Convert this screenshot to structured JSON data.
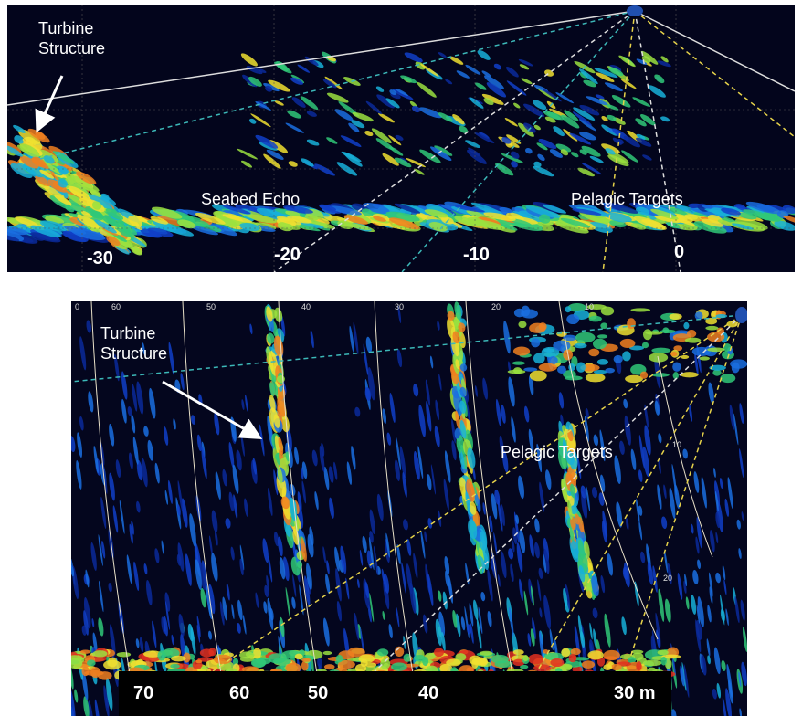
{
  "top_panel": {
    "annotations": [
      "Turbine Structure",
      "Seabed Echo",
      "Pelagic Targets"
    ],
    "axis_labels": [
      "-30",
      "-20",
      "-10",
      "0"
    ]
  },
  "bottom_panel": {
    "annotations": [
      "Turbine Structure",
      "Pelagic Targets"
    ],
    "top_range_labels": [
      "0",
      "60",
      "50",
      "40",
      "30",
      "20",
      "10"
    ],
    "arc_labels": [
      "10",
      "20"
    ],
    "range_labels": [
      "70",
      "60",
      "50",
      "40",
      "30 m"
    ]
  }
}
